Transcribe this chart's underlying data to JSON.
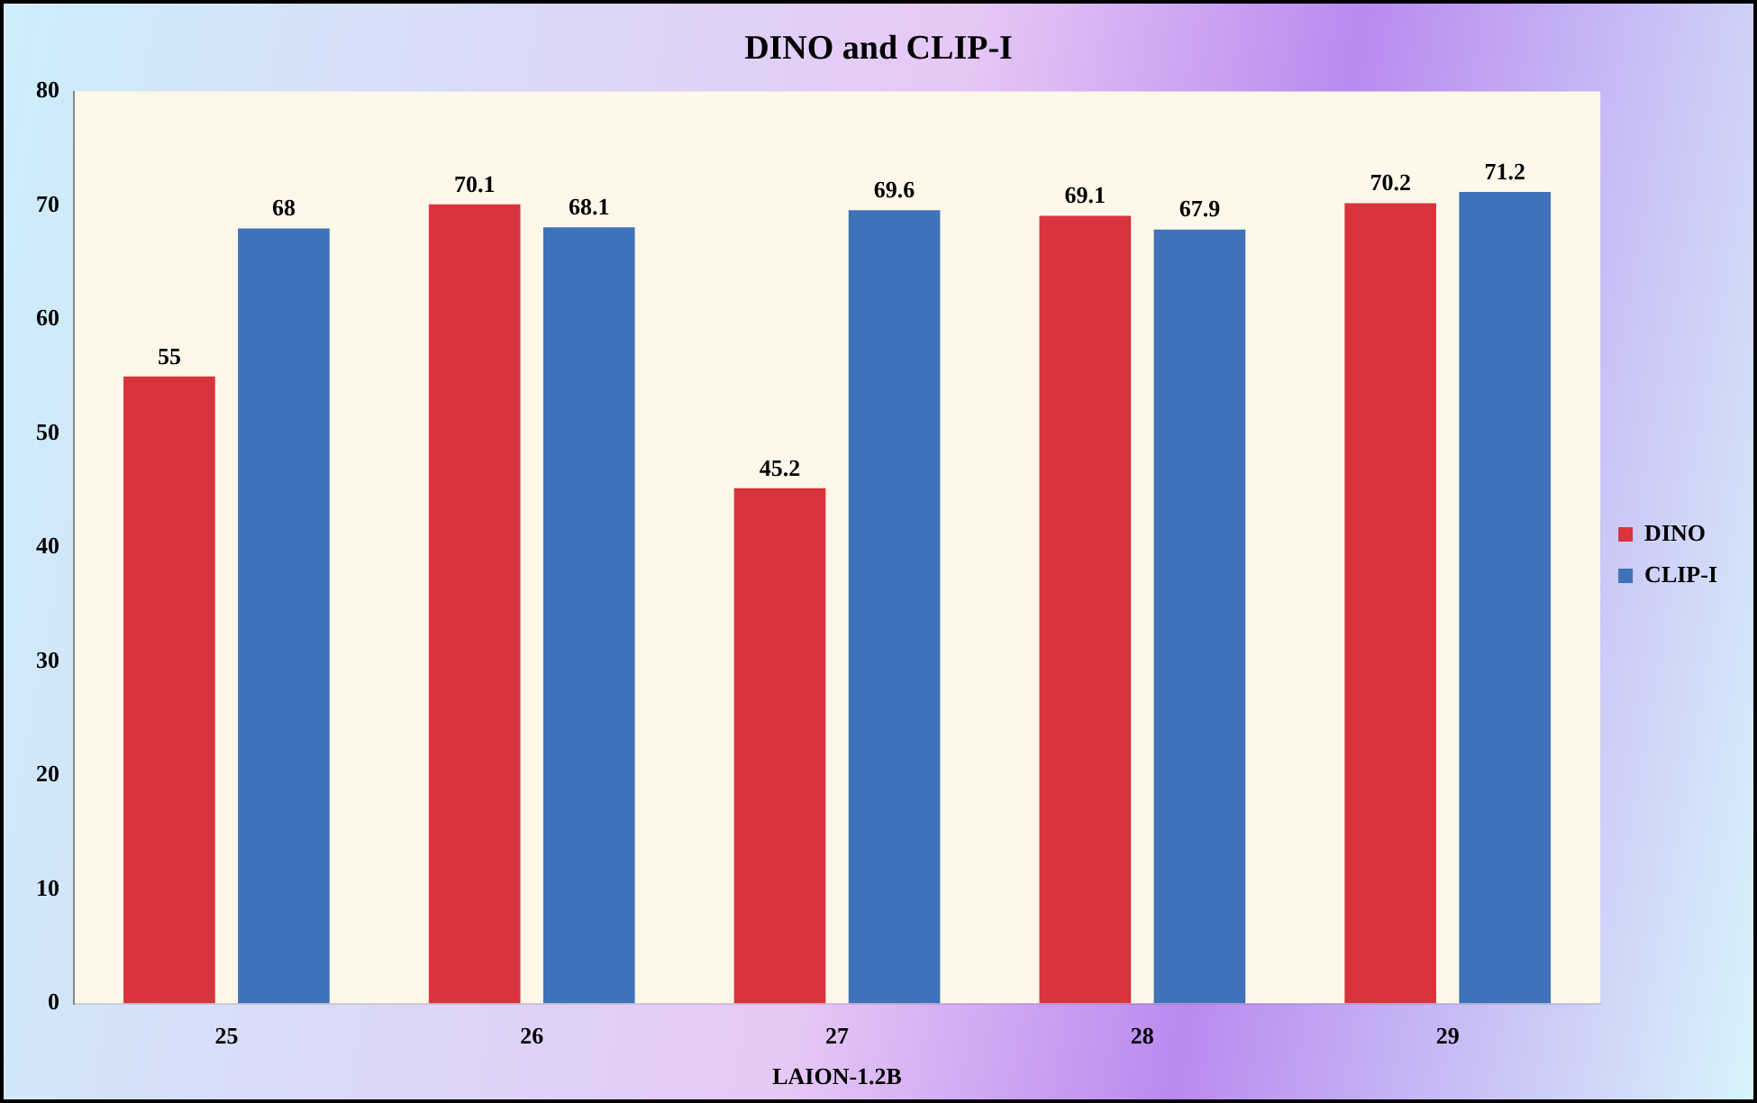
{
  "chart_data": {
    "type": "bar",
    "title": "DINO and CLIP-I",
    "xlabel": "LAION-1.2B",
    "categories": [
      "25",
      "26",
      "27",
      "28",
      "29"
    ],
    "series": [
      {
        "name": "DINO",
        "color": "#d9343c",
        "values": [
          55,
          70.1,
          45.2,
          69.1,
          70.2
        ]
      },
      {
        "name": "CLIP-I",
        "color": "#3f72b8",
        "values": [
          68,
          68.1,
          69.6,
          67.9,
          71.2
        ]
      }
    ],
    "ylim": [
      0,
      80
    ],
    "yticks": [
      0,
      10,
      20,
      30,
      40,
      50,
      60,
      70,
      80
    ],
    "grid": false,
    "legend": "right",
    "data_labels": true
  }
}
